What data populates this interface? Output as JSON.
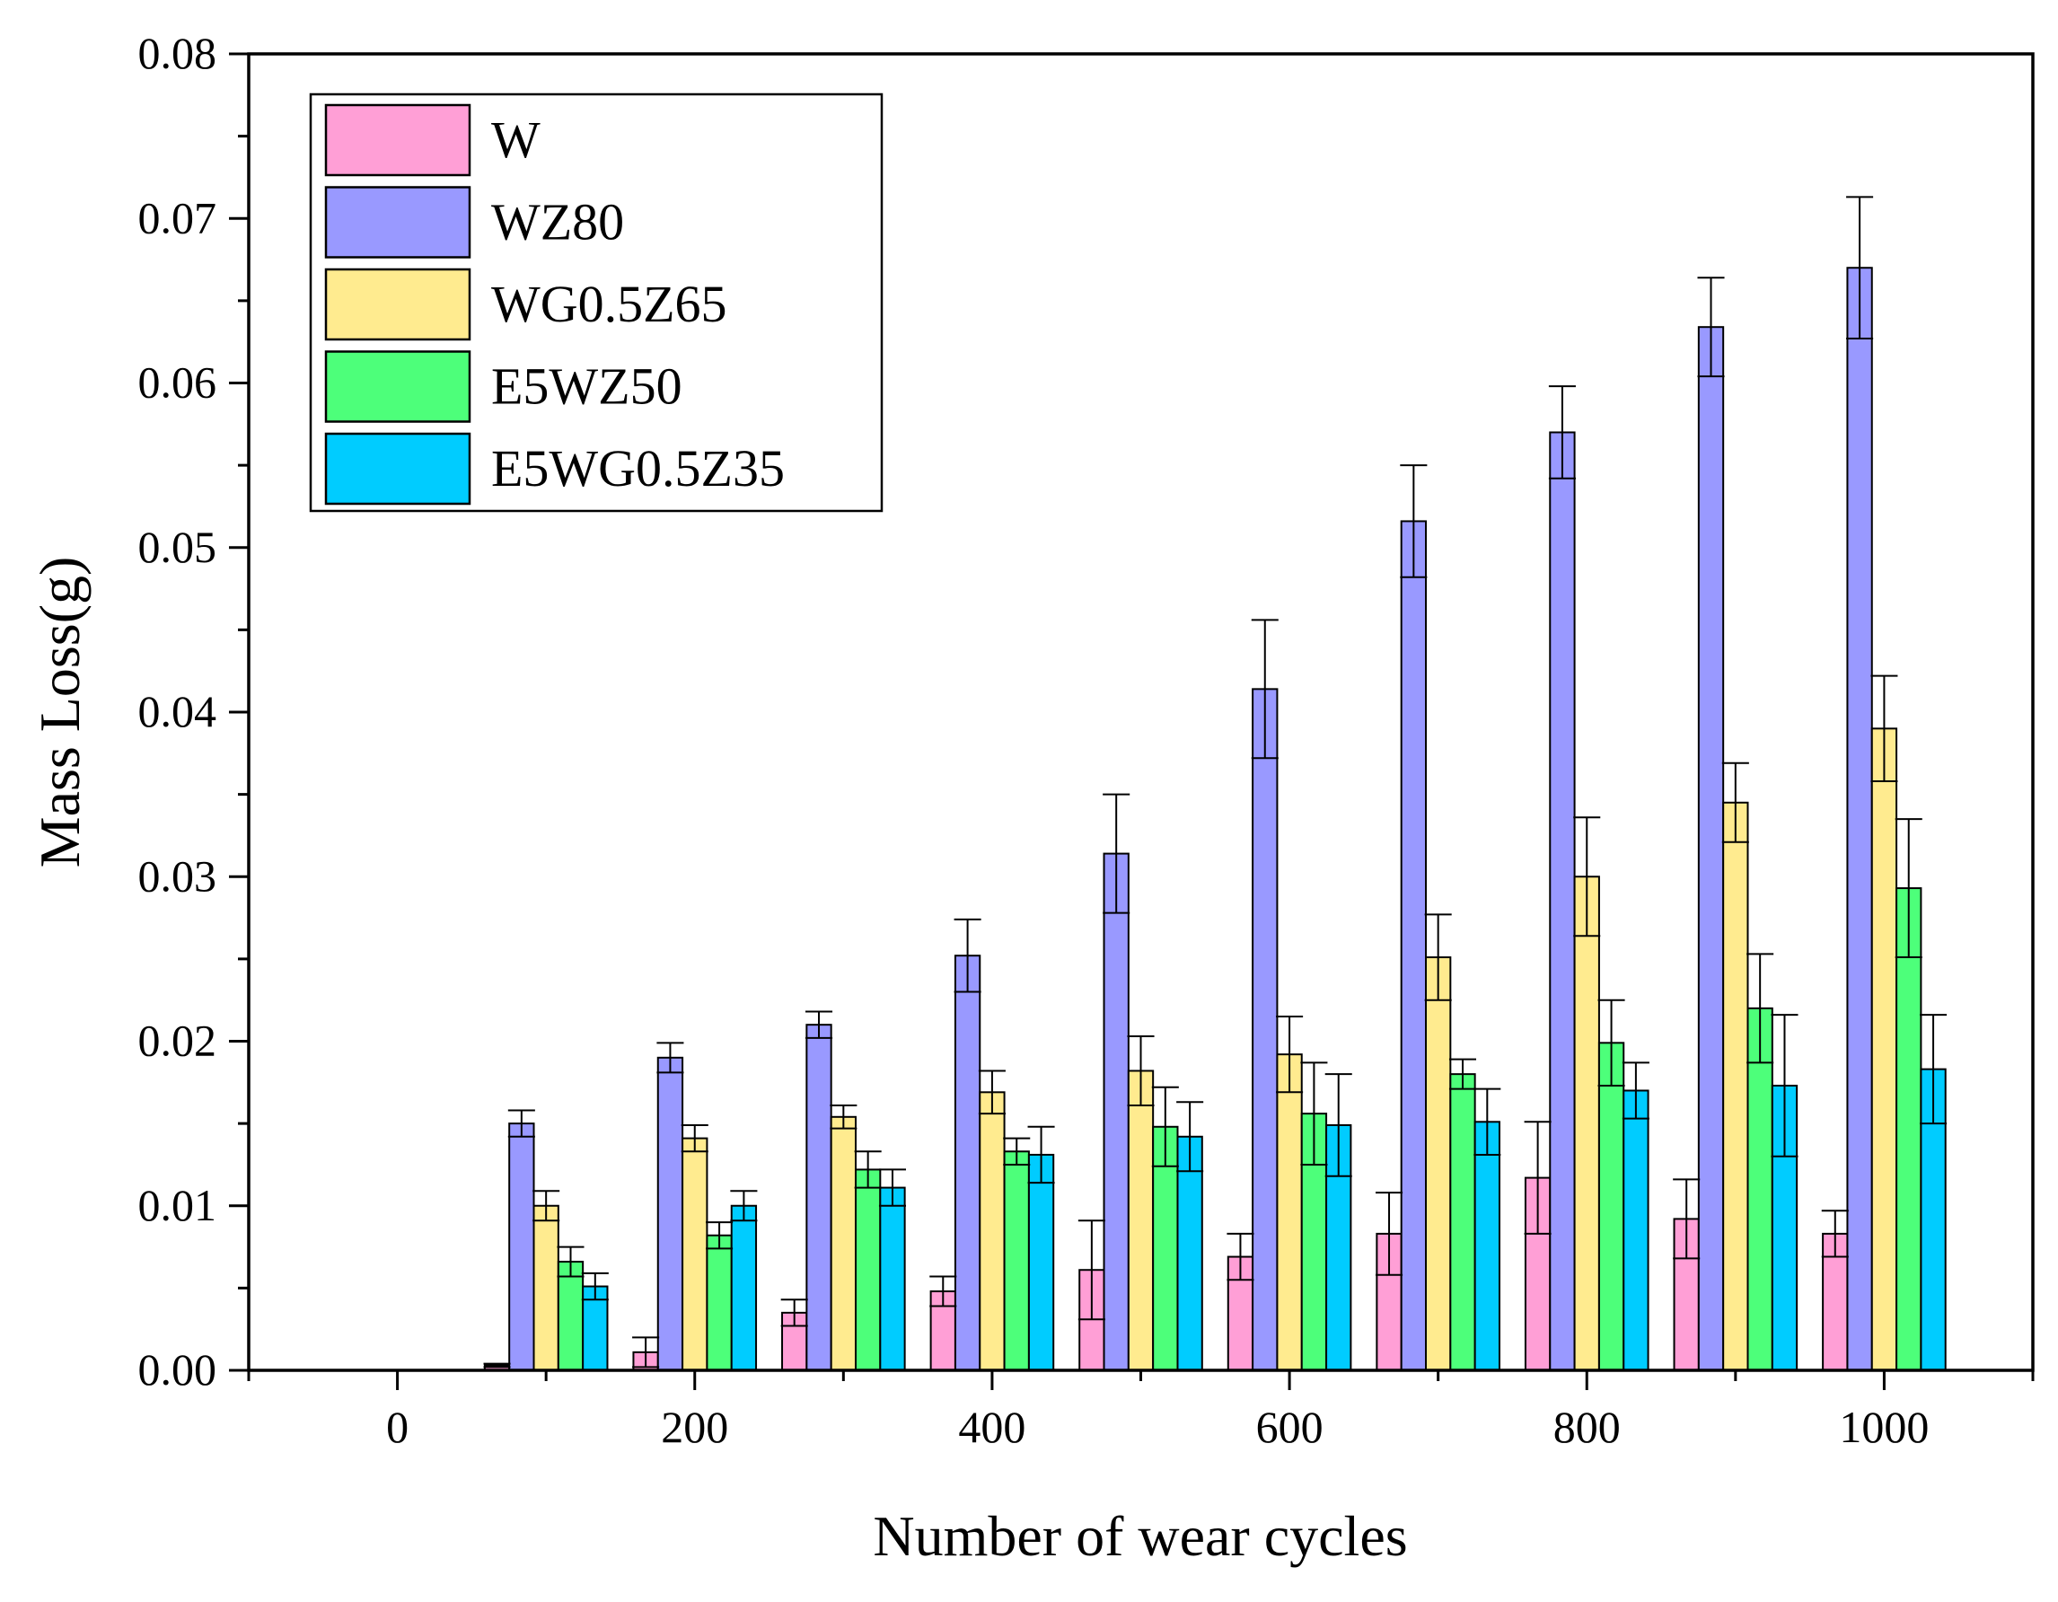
{
  "chart_data": {
    "type": "bar",
    "xlabel": "Number of wear cycles",
    "ylabel": "Mass Loss(g)",
    "xlim": [
      -100,
      1100
    ],
    "ylim": [
      0,
      0.08
    ],
    "x_ticks": [
      0,
      200,
      400,
      600,
      800,
      1000
    ],
    "x_tick_labels": [
      "0",
      "200",
      "400",
      "600",
      "800",
      "1000"
    ],
    "y_ticks": [
      0,
      0.01,
      0.02,
      0.03,
      0.04,
      0.05,
      0.06,
      0.07,
      0.08
    ],
    "y_tick_labels": [
      "0.00",
      "0.01",
      "0.02",
      "0.03",
      "0.04",
      "0.05",
      "0.06",
      "0.07",
      "0.08"
    ],
    "grid": false,
    "legend_position": "top-left",
    "categories": [
      100,
      200,
      300,
      400,
      500,
      600,
      700,
      800,
      900,
      1000
    ],
    "series": [
      {
        "name": "W",
        "color": "#ff9fd6",
        "values": [
          0.0003,
          0.0011,
          0.0035,
          0.0048,
          0.0061,
          0.0069,
          0.0083,
          0.0117,
          0.0092,
          0.0083
        ],
        "errors": [
          0.0001,
          0.0009,
          0.0008,
          0.0009,
          0.003,
          0.0014,
          0.0025,
          0.0034,
          0.0024,
          0.0014
        ]
      },
      {
        "name": "WZ80",
        "color": "#9999ff",
        "values": [
          0.015,
          0.019,
          0.021,
          0.0252,
          0.0314,
          0.0414,
          0.0516,
          0.057,
          0.0634,
          0.067
        ],
        "errors": [
          0.0008,
          0.0009,
          0.0008,
          0.0022,
          0.0036,
          0.0042,
          0.0034,
          0.0028,
          0.003,
          0.0043
        ]
      },
      {
        "name": "WG0.5Z65",
        "color": "#ffeb8f",
        "values": [
          0.01,
          0.0141,
          0.0154,
          0.0169,
          0.0182,
          0.0192,
          0.0251,
          0.03,
          0.0345,
          0.039
        ],
        "errors": [
          0.0009,
          0.0008,
          0.0007,
          0.0013,
          0.0021,
          0.0023,
          0.0026,
          0.0036,
          0.0024,
          0.0032
        ]
      },
      {
        "name": "E5WZ50",
        "color": "#4dff7a",
        "values": [
          0.0066,
          0.0082,
          0.0122,
          0.0133,
          0.0148,
          0.0156,
          0.018,
          0.0199,
          0.022,
          0.0293
        ],
        "errors": [
          0.0009,
          0.0008,
          0.0011,
          0.0008,
          0.0024,
          0.0031,
          0.0009,
          0.0026,
          0.0033,
          0.0042
        ]
      },
      {
        "name": "E5WG0.5Z35",
        "color": "#00ccff",
        "values": [
          0.0051,
          0.01,
          0.0111,
          0.0131,
          0.0142,
          0.0149,
          0.0151,
          0.017,
          0.0173,
          0.0183
        ],
        "errors": [
          0.0008,
          0.0009,
          0.0011,
          0.0017,
          0.0021,
          0.0031,
          0.002,
          0.0017,
          0.0043,
          0.0033
        ]
      }
    ]
  }
}
